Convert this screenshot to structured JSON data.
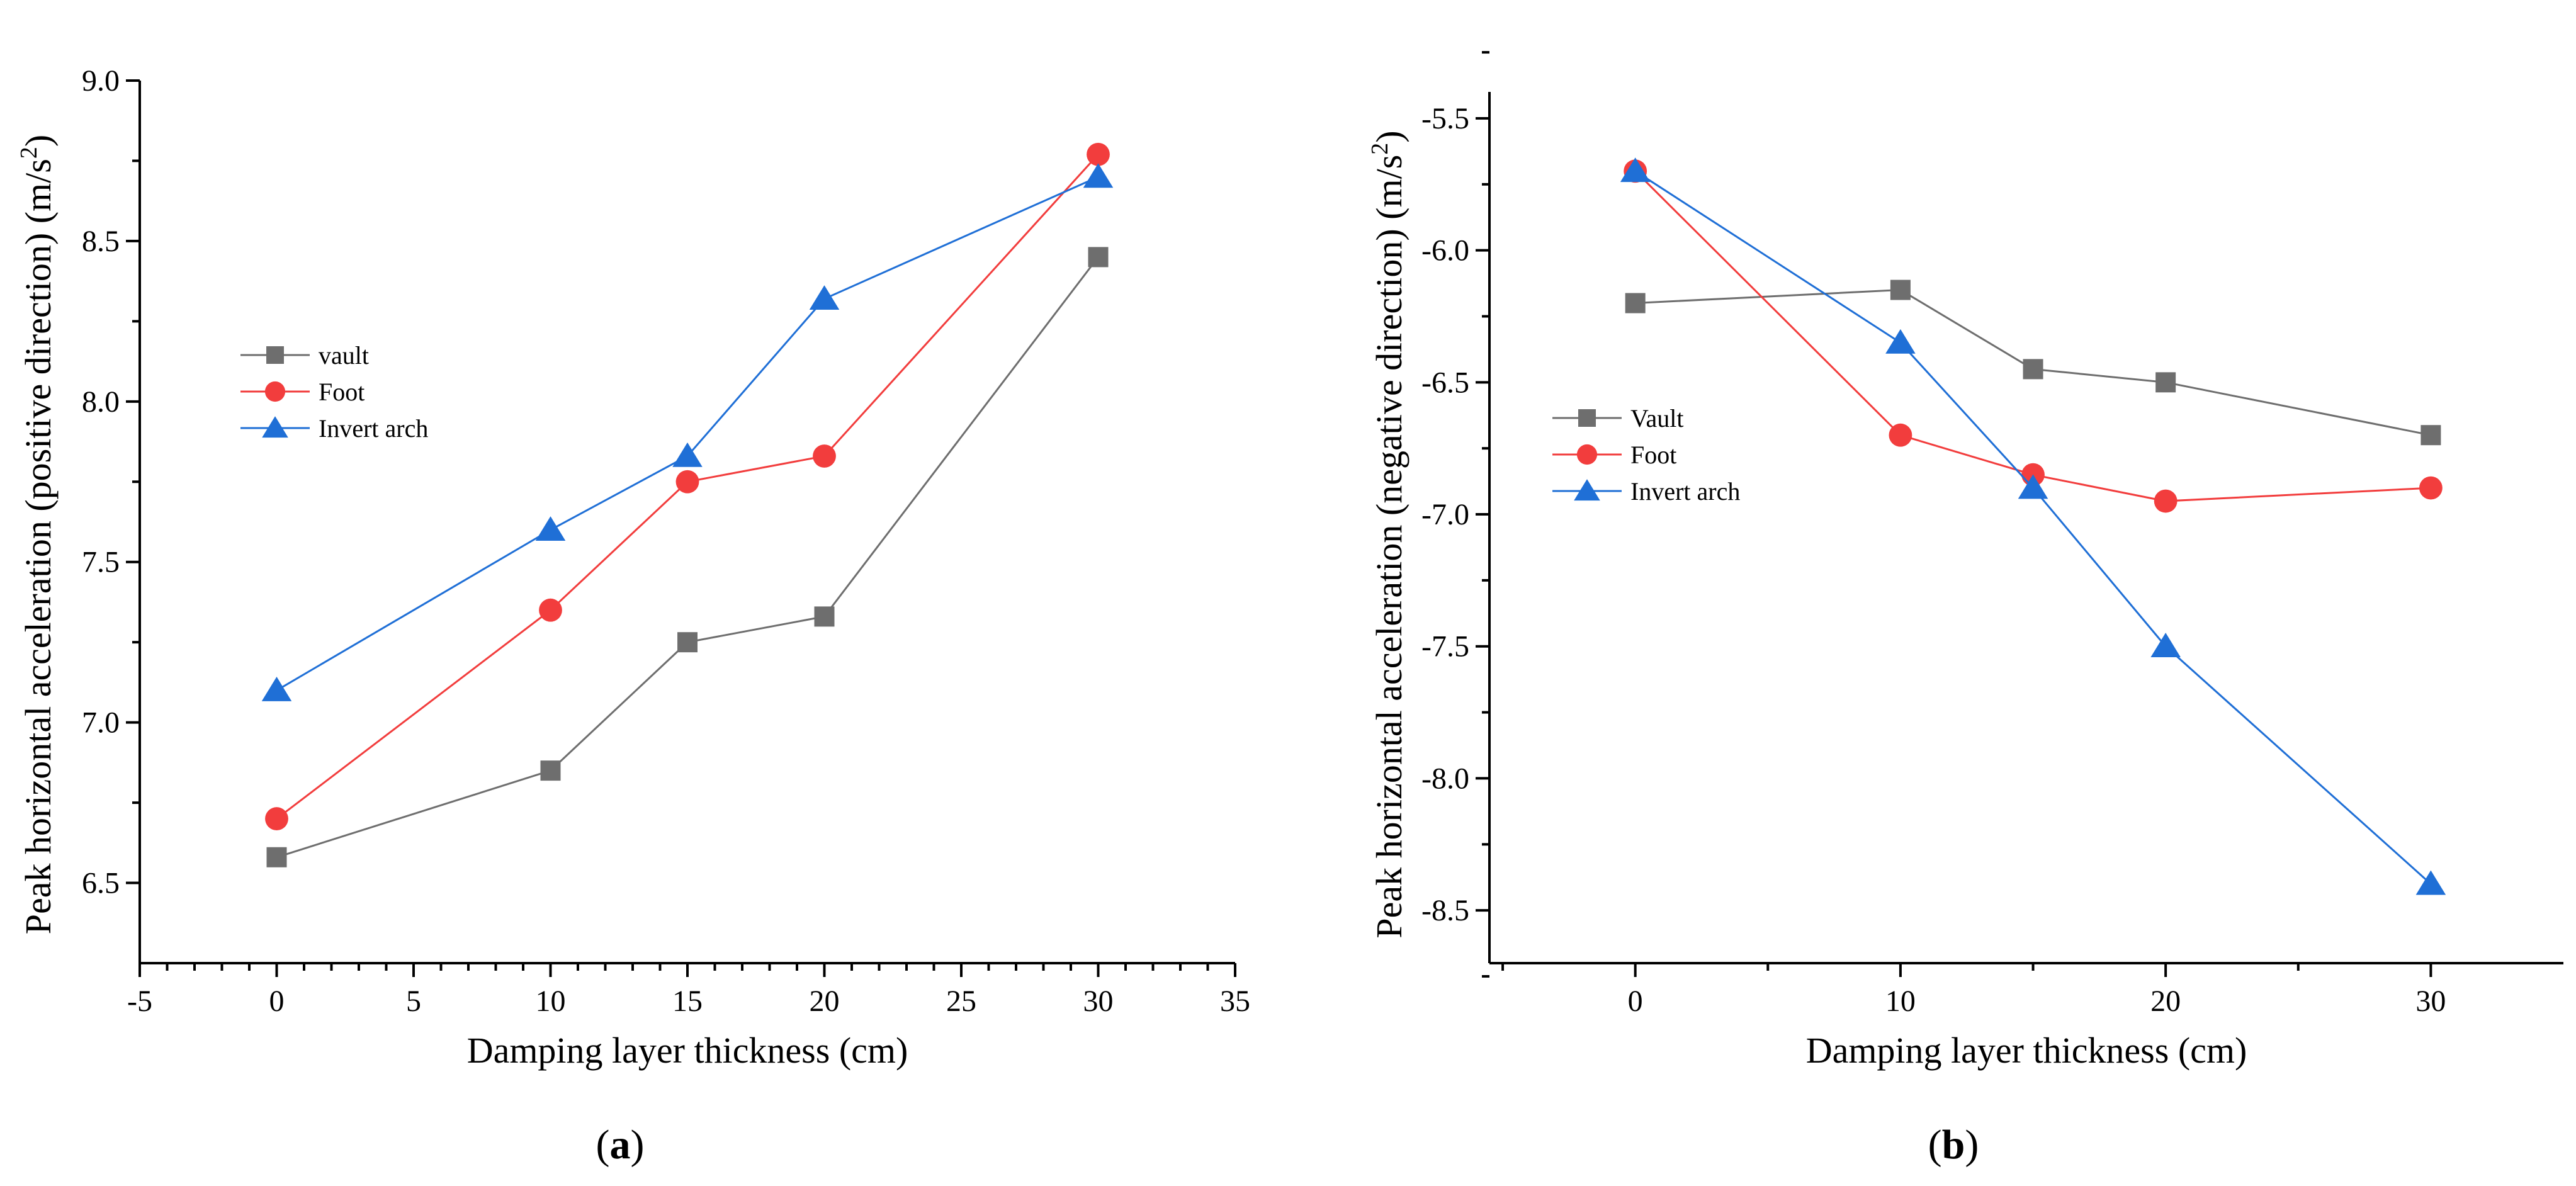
{
  "chart_data": [
    {
      "type": "line",
      "panel_label": "a",
      "xlabel": "Damping layer thickness (cm)",
      "ylabel_main": "Peak horizontal acceleration (positive direction) (m/s",
      "ylabel_sup": "2",
      "ylabel_close": ")",
      "xlim": [
        -5,
        35
      ],
      "ylim": [
        6.25,
        9.0
      ],
      "xticks": [
        "-5",
        "0",
        "5",
        "10",
        "15",
        "20",
        "25",
        "30",
        "35"
      ],
      "xtick_values": [
        -5,
        0,
        5,
        10,
        15,
        20,
        25,
        30,
        35
      ],
      "yticks": [
        "6.5",
        "7.0",
        "7.5",
        "8.0",
        "8.5",
        "9.0"
      ],
      "ytick_values": [
        6.5,
        7.0,
        7.5,
        8.0,
        8.5,
        9.0
      ],
      "x": [
        0,
        10,
        15,
        20,
        30
      ],
      "legend_position": "center-left",
      "series": [
        {
          "name": "vault",
          "marker": "square",
          "color": "#6e6e6e",
          "values": [
            6.58,
            6.85,
            7.25,
            7.33,
            8.45
          ]
        },
        {
          "name": "Foot",
          "marker": "circle",
          "color": "#f23d3d",
          "values": [
            6.7,
            7.35,
            7.75,
            7.83,
            8.77
          ]
        },
        {
          "name": "Invert arch",
          "marker": "triangle",
          "color": "#1f6fd6",
          "values": [
            7.1,
            7.6,
            7.83,
            8.32,
            8.7
          ]
        }
      ]
    },
    {
      "type": "line",
      "panel_label": "b",
      "xlabel": "Damping layer thickness (cm)",
      "ylabel_main": "Peak horizontal acceleration (negative direction) (m/s",
      "ylabel_sup": "2",
      "ylabel_close": ")",
      "xlim": [
        -5.5,
        35
      ],
      "ylim": [
        -8.7,
        -5.4
      ],
      "xticks": [
        "0",
        "10",
        "20",
        "30"
      ],
      "xtick_values": [
        0,
        10,
        20,
        30
      ],
      "yticks": [
        "-5.5",
        "-6.0",
        "-6.5",
        "-7.0",
        "-7.5",
        "-8.0",
        "-8.5"
      ],
      "ytick_values": [
        -5.5,
        -6.0,
        -6.5,
        -7.0,
        -7.5,
        -8.0,
        -8.5
      ],
      "x": [
        0,
        10,
        15,
        20,
        30
      ],
      "legend_position": "center-left",
      "series": [
        {
          "name": "Vault",
          "marker": "square",
          "color": "#6e6e6e",
          "values": [
            -6.2,
            -6.15,
            -6.45,
            -6.5,
            -6.7
          ]
        },
        {
          "name": "Foot",
          "marker": "circle",
          "color": "#f23d3d",
          "values": [
            -5.7,
            -6.7,
            -6.85,
            -6.95,
            -6.9
          ]
        },
        {
          "name": "Invert arch",
          "marker": "triangle",
          "color": "#1f6fd6",
          "values": [
            -5.7,
            -6.35,
            -6.9,
            -7.5,
            -8.4
          ]
        }
      ]
    }
  ]
}
